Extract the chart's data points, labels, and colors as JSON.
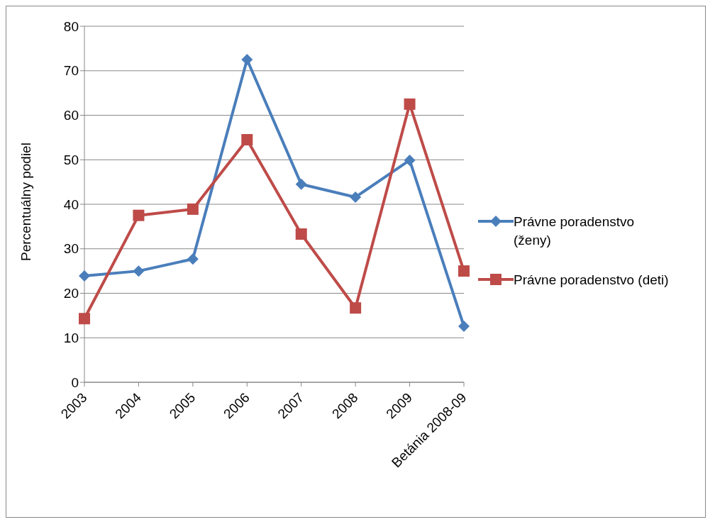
{
  "chart_data": {
    "type": "line",
    "ylabel": "Percentuálny podiel",
    "categories": [
      "2003",
      "2004",
      "2005",
      "2006",
      "2007",
      "2008",
      "2009",
      "Betánia 2008-09"
    ],
    "series": [
      {
        "name": "Právne poradenstvo (ženy)",
        "color": "#4a7ebb",
        "marker": "diamond",
        "values": [
          23.9,
          25.0,
          27.7,
          72.5,
          44.5,
          41.6,
          49.9,
          12.6
        ]
      },
      {
        "name": "Právne poradenstvo (deti)",
        "color": "#be4b48",
        "marker": "square",
        "values": [
          14.3,
          37.5,
          38.9,
          54.5,
          33.3,
          16.7,
          62.5,
          25.0
        ]
      }
    ],
    "ylim": [
      0,
      80
    ],
    "yticks": [
      0,
      10,
      20,
      30,
      40,
      50,
      60,
      70,
      80
    ],
    "grid": "y",
    "legend": "right",
    "line_style": "solid"
  }
}
